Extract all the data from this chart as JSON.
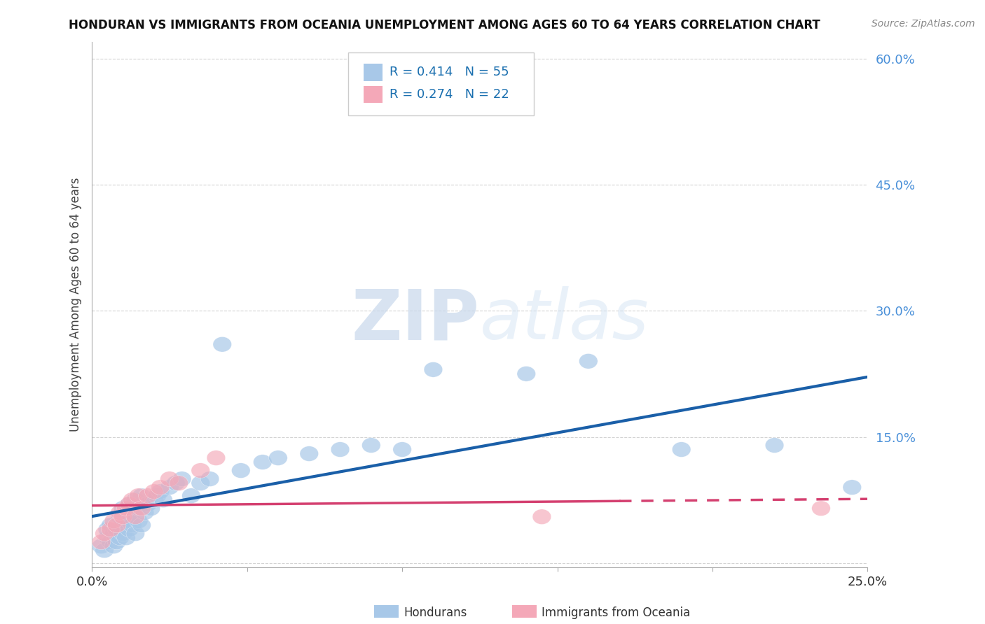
{
  "title": "HONDURAN VS IMMIGRANTS FROM OCEANIA UNEMPLOYMENT AMONG AGES 60 TO 64 YEARS CORRELATION CHART",
  "source": "Source: ZipAtlas.com",
  "ylabel": "Unemployment Among Ages 60 to 64 years",
  "xlim": [
    0.0,
    0.25
  ],
  "ylim": [
    -0.005,
    0.62
  ],
  "xticks": [
    0.0,
    0.05,
    0.1,
    0.15,
    0.2,
    0.25
  ],
  "yticks": [
    0.0,
    0.15,
    0.3,
    0.45,
    0.6
  ],
  "ytick_labels": [
    "",
    "15.0%",
    "30.0%",
    "45.0%",
    "60.0%"
  ],
  "xtick_labels": [
    "0.0%",
    "",
    "",
    "",
    "",
    "25.0%"
  ],
  "hondurans_R": 0.414,
  "hondurans_N": 55,
  "oceania_R": 0.274,
  "oceania_N": 22,
  "blue_color": "#a8c8e8",
  "pink_color": "#f4a8b8",
  "blue_line_color": "#1a5fa8",
  "pink_line_color": "#d44070",
  "legend_R_color": "#1a6faf",
  "background_color": "#ffffff",
  "watermark_zip": "ZIP",
  "watermark_atlas": "atlas",
  "hondurans_x": [
    0.003,
    0.004,
    0.005,
    0.005,
    0.006,
    0.006,
    0.007,
    0.007,
    0.008,
    0.008,
    0.009,
    0.009,
    0.01,
    0.01,
    0.01,
    0.011,
    0.011,
    0.012,
    0.012,
    0.012,
    0.013,
    0.013,
    0.014,
    0.014,
    0.015,
    0.015,
    0.016,
    0.016,
    0.017,
    0.018,
    0.019,
    0.02,
    0.021,
    0.022,
    0.023,
    0.025,
    0.027,
    0.029,
    0.032,
    0.035,
    0.038,
    0.042,
    0.048,
    0.055,
    0.06,
    0.07,
    0.08,
    0.09,
    0.1,
    0.11,
    0.14,
    0.16,
    0.19,
    0.22,
    0.245
  ],
  "hondurans_y": [
    0.02,
    0.015,
    0.03,
    0.04,
    0.025,
    0.045,
    0.02,
    0.035,
    0.025,
    0.04,
    0.03,
    0.055,
    0.035,
    0.05,
    0.065,
    0.03,
    0.06,
    0.04,
    0.05,
    0.07,
    0.045,
    0.06,
    0.035,
    0.075,
    0.05,
    0.065,
    0.045,
    0.08,
    0.06,
    0.07,
    0.065,
    0.075,
    0.08,
    0.085,
    0.075,
    0.09,
    0.095,
    0.1,
    0.08,
    0.095,
    0.1,
    0.26,
    0.11,
    0.12,
    0.125,
    0.13,
    0.135,
    0.14,
    0.135,
    0.23,
    0.225,
    0.24,
    0.135,
    0.14,
    0.09
  ],
  "oceania_x": [
    0.003,
    0.004,
    0.006,
    0.007,
    0.008,
    0.009,
    0.01,
    0.011,
    0.012,
    0.013,
    0.014,
    0.015,
    0.016,
    0.018,
    0.02,
    0.022,
    0.025,
    0.028,
    0.035,
    0.04,
    0.145,
    0.235
  ],
  "oceania_y": [
    0.025,
    0.035,
    0.04,
    0.05,
    0.045,
    0.06,
    0.055,
    0.065,
    0.07,
    0.075,
    0.055,
    0.08,
    0.065,
    0.08,
    0.085,
    0.09,
    0.1,
    0.095,
    0.11,
    0.125,
    0.055,
    0.065
  ]
}
